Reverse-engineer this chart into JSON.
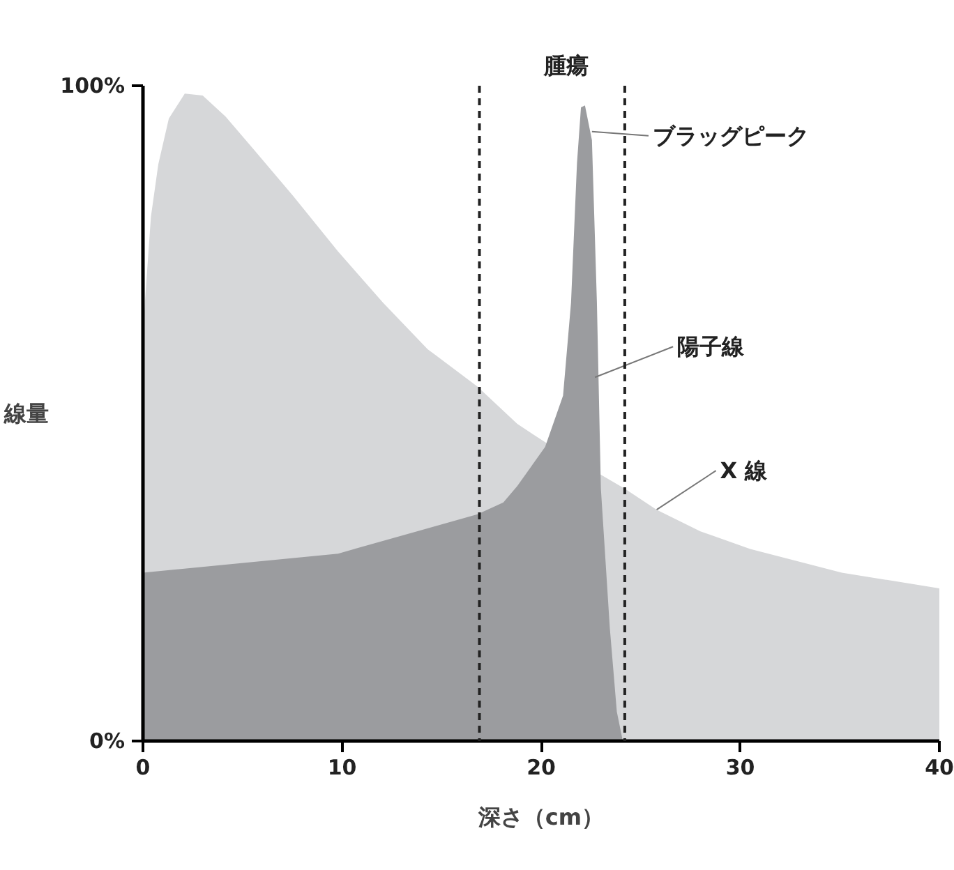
{
  "chart_data": {
    "type": "area",
    "xlabel": "深さ（cm）",
    "ylabel": "線量",
    "xlim": [
      0,
      40
    ],
    "ylim": [
      0,
      100
    ],
    "xticks": [
      0,
      10,
      20,
      30,
      40
    ],
    "yticks": [
      {
        "value": 0,
        "label": "0%"
      },
      {
        "value": 100,
        "label": "100%"
      }
    ],
    "grid": false,
    "series": [
      {
        "color": "#d6d7d9",
        "x": [
          0,
          0.1,
          0.4,
          0.77,
          1.3,
          2.1,
          3,
          4.15,
          5.5,
          7.54,
          9.8,
          12.06,
          14.3,
          16.8,
          18.8,
          20.2,
          24.2,
          25.8,
          28,
          30.5,
          35.1,
          40
        ],
        "values": [
          62,
          67,
          80,
          88,
          95,
          98.8,
          98.5,
          95.3,
          90.5,
          83.2,
          74.7,
          66.9,
          59.8,
          54.1,
          48.4,
          45.6,
          38.5,
          35.3,
          32,
          29.3,
          25.7,
          23.3
        ]
      },
      {
        "color": "#9b9c9f",
        "x": [
          0,
          9.8,
          16.8,
          18.1,
          18.8,
          20.2,
          21.1,
          21.5,
          21.8,
          22.0,
          22.2,
          22.55,
          22.8,
          23.0,
          23.45,
          23.8,
          24.1
        ],
        "values": [
          25.7,
          28.6,
          34.6,
          36.4,
          38.9,
          44.9,
          52.7,
          66.9,
          88.2,
          96.7,
          97,
          91.7,
          66.9,
          38.5,
          17.2,
          4.5,
          0
        ]
      }
    ],
    "ref_lines": [
      {
        "axis": "x",
        "value": 16.9,
        "line_style": "dashed",
        "color": "#222222"
      },
      {
        "axis": "x",
        "value": 24.2,
        "line_style": "dashed",
        "color": "#222222"
      }
    ],
    "annotations": [
      "腫瘍",
      {
        "text": "ブラッグピーク",
        "x": 22.55,
        "y": 93
      },
      {
        "text": "陽子線",
        "x": 22.7,
        "y": 55.5
      },
      {
        "text": "X 線",
        "x": 25.8,
        "y": 35.3
      }
    ]
  }
}
